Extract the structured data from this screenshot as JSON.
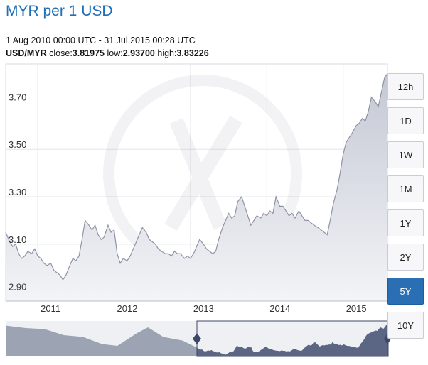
{
  "header": {
    "title": "MYR per 1 USD",
    "date_range": "1 Aug 2010 00:00 UTC - 31 Jul 2015 00:28 UTC",
    "pair": "USD/MYR",
    "close_label": "close:",
    "close_value": "3.81975",
    "low_label": "low:",
    "low_value": "2.93700",
    "high_label": "high:",
    "high_value": "3.83226"
  },
  "timeframes": [
    {
      "label": "12h",
      "active": false
    },
    {
      "label": "1D",
      "active": false
    },
    {
      "label": "1W",
      "active": false
    },
    {
      "label": "1M",
      "active": false
    },
    {
      "label": "1Y",
      "active": false
    },
    {
      "label": "2Y",
      "active": false
    },
    {
      "label": "5Y",
      "active": true
    },
    {
      "label": "10Y",
      "active": false
    }
  ],
  "colors": {
    "line": "#8e94a6",
    "area_top": "#c4c8d4",
    "area_bottom": "#f3f4f7",
    "navigator_fill": "#9ca3b2",
    "navigator_selected": "#5b6684",
    "navigator_handle": "#3c4866",
    "active_button": "#2a6fb3",
    "title": "#1f6fb8"
  },
  "chart_data": {
    "type": "area",
    "xlim": [
      2010.58,
      2015.58
    ],
    "ylim": [
      2.86,
      3.86
    ],
    "y_ticks": [
      "2.90",
      "3.10",
      "3.30",
      "3.50",
      "3.70"
    ],
    "y_tick_values": [
      2.9,
      3.1,
      3.3,
      3.5,
      3.7
    ],
    "x_ticks": [
      "2011",
      "2012",
      "2013",
      "2014",
      "2015"
    ],
    "x_tick_values": [
      2011.0,
      2012.0,
      2013.0,
      2014.0,
      2015.0
    ],
    "grid": true,
    "legend": false,
    "series": [
      {
        "x": [
          2010.58,
          2010.62,
          2010.67,
          2010.71,
          2010.75,
          2010.79,
          2010.83,
          2010.87,
          2010.92,
          2010.96,
          2011.0,
          2011.04,
          2011.08,
          2011.12,
          2011.17,
          2011.21,
          2011.25,
          2011.29,
          2011.33,
          2011.37,
          2011.42,
          2011.46,
          2011.5,
          2011.54,
          2011.58,
          2011.62,
          2011.67,
          2011.71,
          2011.75,
          2011.79,
          2011.83,
          2011.87,
          2011.92,
          2011.96,
          2012.0,
          2012.04,
          2012.08,
          2012.12,
          2012.17,
          2012.21,
          2012.25,
          2012.29,
          2012.33,
          2012.37,
          2012.42,
          2012.46,
          2012.5,
          2012.54,
          2012.58,
          2012.62,
          2012.67,
          2012.71,
          2012.75,
          2012.79,
          2012.83,
          2012.87,
          2012.92,
          2012.96,
          2013.0,
          2013.04,
          2013.08,
          2013.12,
          2013.17,
          2013.21,
          2013.25,
          2013.29,
          2013.33,
          2013.37,
          2013.42,
          2013.46,
          2013.5,
          2013.54,
          2013.58,
          2013.62,
          2013.67,
          2013.71,
          2013.75,
          2013.79,
          2013.83,
          2013.87,
          2013.92,
          2013.96,
          2014.0,
          2014.04,
          2014.08,
          2014.12,
          2014.17,
          2014.21,
          2014.25,
          2014.29,
          2014.33,
          2014.37,
          2014.42,
          2014.46,
          2014.5,
          2014.54,
          2014.58,
          2014.62,
          2014.67,
          2014.71,
          2014.75,
          2014.79,
          2014.83,
          2014.87,
          2014.92,
          2014.96,
          2015.0,
          2015.04,
          2015.08,
          2015.12,
          2015.17,
          2015.21,
          2015.25,
          2015.29,
          2015.33,
          2015.37,
          2015.42,
          2015.46,
          2015.5,
          2015.54,
          2015.58
        ],
        "values": [
          3.15,
          3.12,
          3.09,
          3.1,
          3.06,
          3.04,
          3.05,
          3.07,
          3.06,
          3.08,
          3.05,
          3.04,
          3.02,
          3.01,
          3.02,
          2.99,
          2.98,
          2.97,
          2.95,
          2.97,
          3.01,
          3.04,
          3.03,
          3.05,
          3.12,
          3.2,
          3.18,
          3.16,
          3.18,
          3.14,
          3.12,
          3.13,
          3.18,
          3.15,
          3.16,
          3.06,
          3.02,
          3.04,
          3.03,
          3.05,
          3.08,
          3.11,
          3.14,
          3.17,
          3.15,
          3.12,
          3.11,
          3.1,
          3.08,
          3.07,
          3.06,
          3.06,
          3.05,
          3.07,
          3.06,
          3.06,
          3.04,
          3.05,
          3.04,
          3.06,
          3.09,
          3.12,
          3.1,
          3.08,
          3.07,
          3.06,
          3.07,
          3.12,
          3.17,
          3.2,
          3.23,
          3.21,
          3.22,
          3.28,
          3.3,
          3.26,
          3.22,
          3.18,
          3.2,
          3.22,
          3.21,
          3.23,
          3.22,
          3.24,
          3.23,
          3.3,
          3.26,
          3.26,
          3.24,
          3.22,
          3.23,
          3.21,
          3.24,
          3.22,
          3.2,
          3.2,
          3.19,
          3.18,
          3.17,
          3.16,
          3.15,
          3.14,
          3.2,
          3.27,
          3.33,
          3.4,
          3.48,
          3.53,
          3.55,
          3.57,
          3.6,
          3.61,
          3.63,
          3.62,
          3.66,
          3.72,
          3.7,
          3.68,
          3.74,
          3.8,
          3.82
        ]
      }
    ]
  }
}
